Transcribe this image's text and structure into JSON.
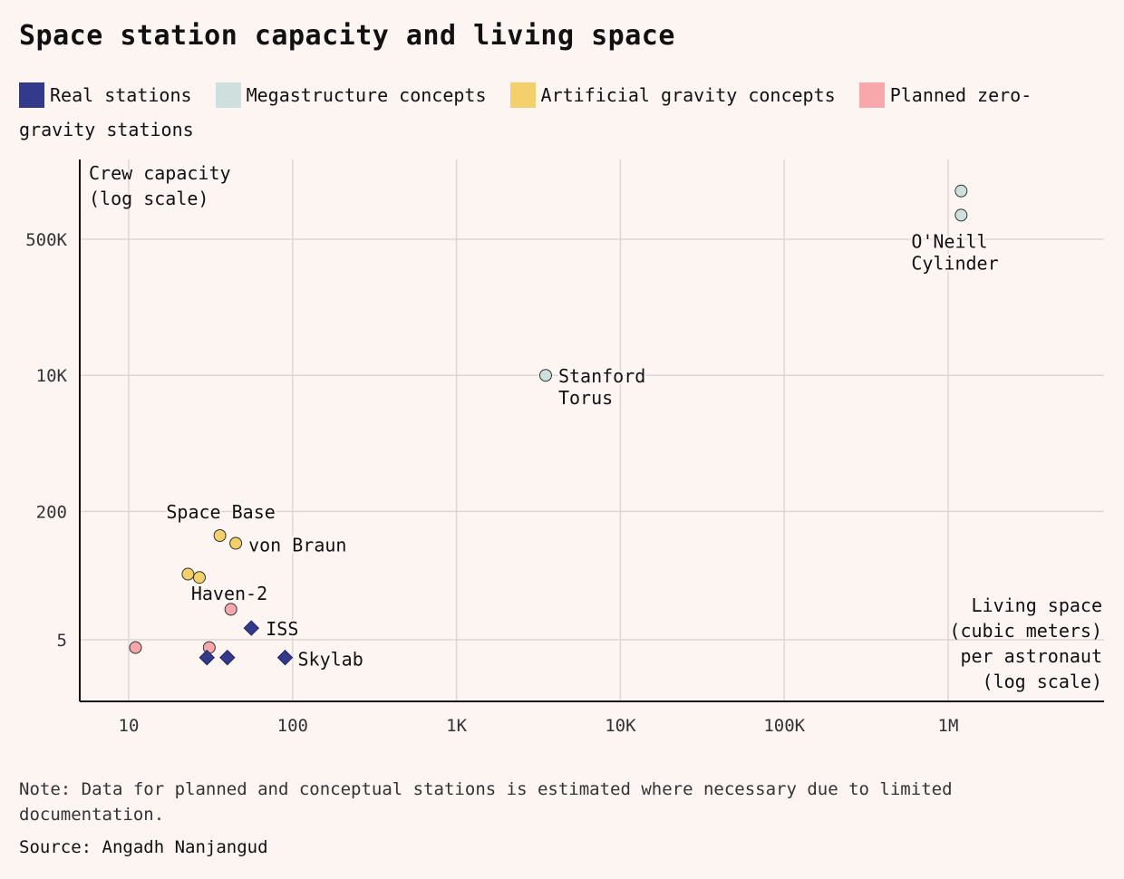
{
  "title": "Space station capacity and living space",
  "note": "Note: Data for planned and conceptual stations is estimated where necessary due to limited documentation.",
  "source": "Source: Angadh Nanjangud",
  "chart_data": {
    "type": "scatter",
    "title": "Space station capacity and living space",
    "ylabel_lines": [
      "Crew capacity",
      "(log scale)"
    ],
    "xlabel_lines": [
      "Living space",
      "(cubic meters)",
      "per astronaut",
      "(log scale)"
    ],
    "x_scale": "log",
    "y_scale": "log",
    "xlim": [
      5,
      7000000
    ],
    "ylim": [
      1,
      3000000
    ],
    "x_ticks": [
      {
        "value": 10,
        "label": "10"
      },
      {
        "value": 100,
        "label": "100"
      },
      {
        "value": 1000,
        "label": "1K"
      },
      {
        "value": 10000,
        "label": "10K"
      },
      {
        "value": 100000,
        "label": "100K"
      },
      {
        "value": 1000000,
        "label": "1M"
      }
    ],
    "y_ticks": [
      {
        "value": 5,
        "label": "5"
      },
      {
        "value": 200,
        "label": "200"
      },
      {
        "value": 10000,
        "label": "10K"
      },
      {
        "value": 500000,
        "label": "500K"
      }
    ],
    "grid": true,
    "legend_position": "top",
    "series": [
      {
        "name": "Real stations",
        "color": "#333a8c",
        "marker": "diamond",
        "points": [
          {
            "x": 56,
            "y": 7,
            "label": "ISS"
          },
          {
            "x": 90,
            "y": 3,
            "label": "Skylab"
          },
          {
            "x": 30,
            "y": 3,
            "label": ""
          },
          {
            "x": 40,
            "y": 3,
            "label": ""
          }
        ]
      },
      {
        "name": "Megastructure concepts",
        "color": "#cde0dd",
        "marker": "circle",
        "points": [
          {
            "x": 3500,
            "y": 10000,
            "label": "Stanford Torus"
          },
          {
            "x": 1200000,
            "y": 1000000,
            "label": "O'Neill Cylinder"
          },
          {
            "x": 1200000,
            "y": 2000000,
            "label": ""
          }
        ]
      },
      {
        "name": "Artificial gravity concepts",
        "color": "#f3d06b",
        "marker": "circle",
        "points": [
          {
            "x": 36,
            "y": 100,
            "label": "Space Base"
          },
          {
            "x": 45,
            "y": 80,
            "label": "von Braun"
          },
          {
            "x": 27,
            "y": 30,
            "label": "Haven-2"
          },
          {
            "x": 23,
            "y": 33,
            "label": ""
          }
        ]
      },
      {
        "name": "Planned zero-gravity stations",
        "color": "#f8a7aa",
        "marker": "circle",
        "points": [
          {
            "x": 42,
            "y": 12,
            "label": ""
          },
          {
            "x": 11,
            "y": 4,
            "label": ""
          },
          {
            "x": 31,
            "y": 4,
            "label": ""
          }
        ]
      }
    ]
  }
}
